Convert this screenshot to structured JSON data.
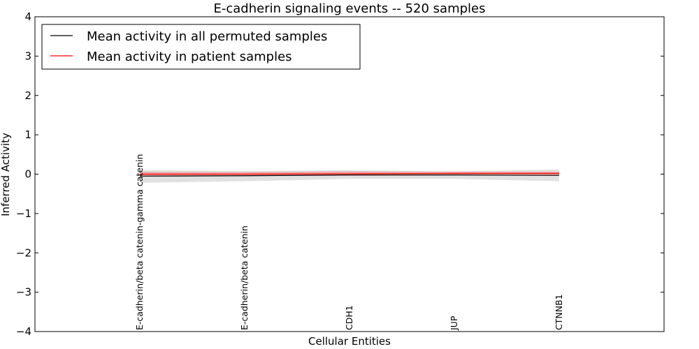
{
  "chart_data": {
    "type": "line",
    "title": "E-cadherin signaling events -- 520 samples",
    "xlabel": "Cellular Entities",
    "ylabel": "Inferred Activity",
    "ylim": [
      -4,
      4
    ],
    "yticks": [
      -4,
      -3,
      -2,
      -1,
      0,
      1,
      2,
      3,
      4
    ],
    "ytick_labels": [
      "−4",
      "−3",
      "−2",
      "−1",
      "0",
      "1",
      "2",
      "3",
      "4"
    ],
    "x_range": [
      -1,
      5
    ],
    "categories": [
      "E-cadherin/beta catenin-gamma catenin",
      "E-cadherin/beta catenin",
      "CDH1",
      "JUP",
      "CTNNB1"
    ],
    "legend_position": "top-left",
    "series": [
      {
        "name": "Mean activity in all permuted samples",
        "color": "#000000",
        "values": [
          -0.05,
          -0.04,
          -0.02,
          -0.02,
          -0.03
        ],
        "band_lower": [
          -0.22,
          -0.18,
          -0.12,
          -0.12,
          -0.18
        ],
        "band_upper": [
          0.1,
          0.08,
          0.1,
          0.07,
          0.12
        ],
        "band_color": "#c8c8c8"
      },
      {
        "name": "Mean activity in patient samples",
        "color": "#ff0000",
        "values": [
          0.0,
          0.0,
          0.01,
          0.02,
          0.02
        ],
        "band_lower": [
          -0.06,
          -0.05,
          -0.04,
          -0.03,
          -0.04
        ],
        "band_upper": [
          0.06,
          0.05,
          0.07,
          0.06,
          0.06
        ],
        "band_color": "#f08080"
      }
    ]
  }
}
